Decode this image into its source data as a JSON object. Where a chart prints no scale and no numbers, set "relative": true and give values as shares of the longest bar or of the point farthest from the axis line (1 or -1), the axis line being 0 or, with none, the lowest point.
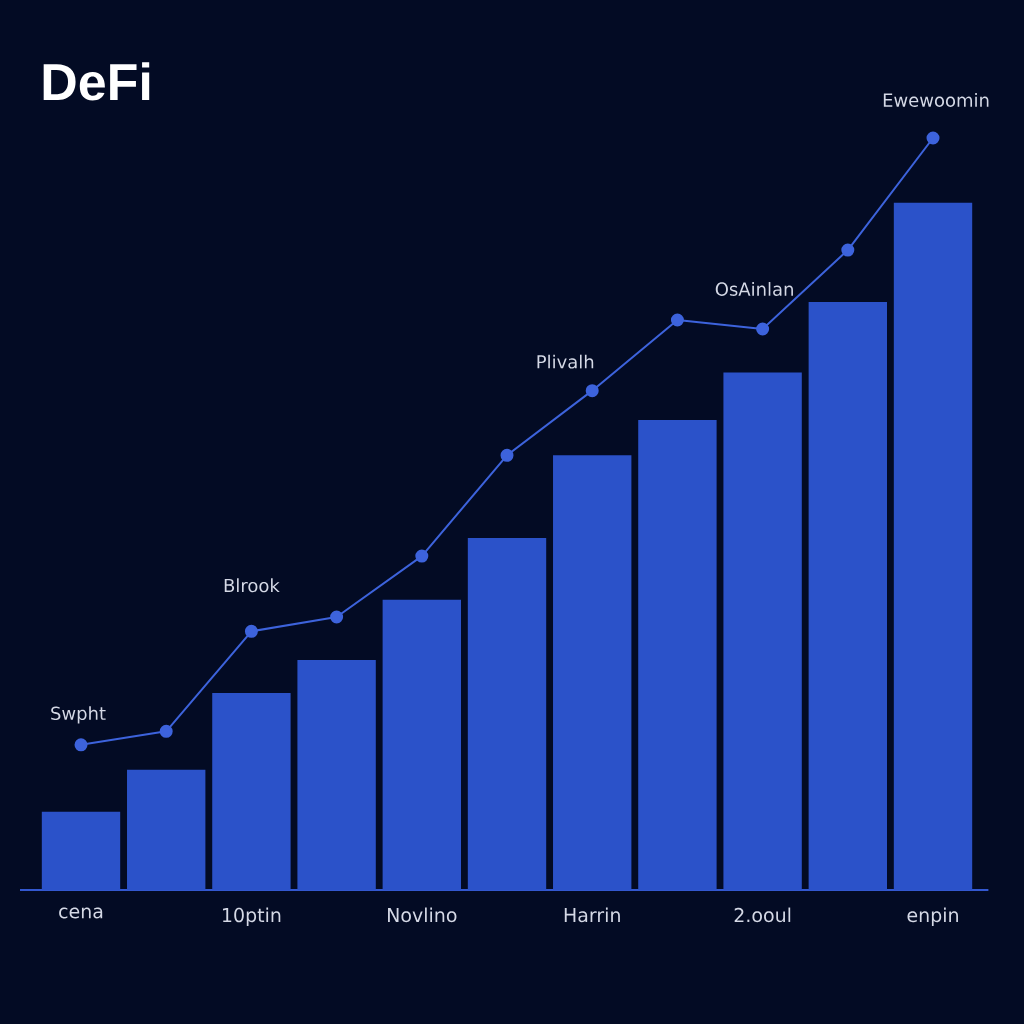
{
  "chart_data": {
    "type": "bar",
    "title": "DeFi",
    "relative": true,
    "categories": [
      "cena",
      null,
      "10ptin",
      null,
      "Novlino",
      null,
      "Harrin",
      null,
      "2.ooul",
      null,
      "enpin"
    ],
    "series": [
      {
        "color": "#2b52c9",
        "values": [
          0.104,
          0.16,
          0.262,
          0.306,
          0.386,
          0.468,
          0.578,
          0.625,
          0.688,
          0.782,
          0.914
        ]
      },
      {
        "type": "line",
        "color": "#3d63dc",
        "values": [
          0.193,
          0.211,
          0.344,
          0.363,
          0.444,
          0.578,
          0.664,
          0.758,
          0.746,
          0.851,
          1
        ]
      }
    ],
    "marker": "circle",
    "annotations": [
      {
        "text": "Swpht",
        "x": "cena",
        "y": 0.193
      },
      {
        "text": "Blrook",
        "x": "10ptin",
        "y": 0.344
      },
      {
        "text": "Plivalh",
        "x": "Harrin",
        "y": 0.664
      },
      {
        "text": "OsAinlan",
        "x": "2.ooul",
        "y": 0.746
      },
      {
        "text": "Ewewoomin",
        "x": "enpin",
        "y": 1
      }
    ]
  }
}
